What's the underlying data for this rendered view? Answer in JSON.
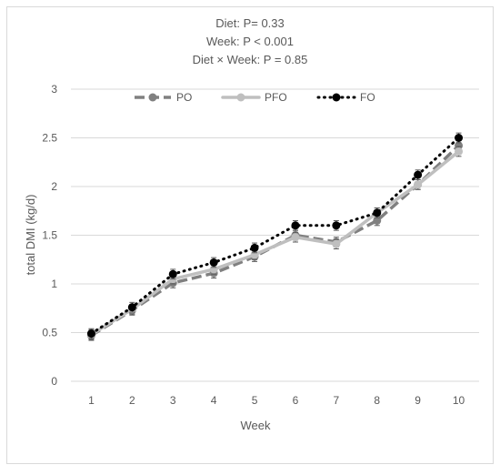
{
  "chart_data": {
    "type": "line",
    "annotations": [
      "Diet: P= 0.33",
      "Week: P < 0.001",
      "Diet × Week: P = 0.85"
    ],
    "xlabel": "Week",
    "ylabel": "total DMI (kg/d)",
    "x": [
      1,
      2,
      3,
      4,
      5,
      6,
      7,
      8,
      9,
      10
    ],
    "ylim": [
      0,
      3
    ],
    "yticks": [
      0,
      0.5,
      1,
      1.5,
      2,
      2.5,
      3
    ],
    "grid": true,
    "legend_position": "top",
    "series": [
      {
        "name": "PO",
        "values": [
          0.47,
          0.73,
          1.01,
          1.11,
          1.28,
          1.5,
          1.43,
          1.65,
          2.02,
          2.42
        ],
        "errors": [
          0.05,
          0.05,
          0.05,
          0.05,
          0.05,
          0.05,
          0.05,
          0.05,
          0.05,
          0.05
        ],
        "color": "#808080",
        "line_style": "dash"
      },
      {
        "name": "PFO",
        "values": [
          0.48,
          0.74,
          1.05,
          1.15,
          1.3,
          1.48,
          1.41,
          1.73,
          2.02,
          2.36
        ],
        "errors": [
          0.05,
          0.05,
          0.05,
          0.05,
          0.05,
          0.05,
          0.05,
          0.05,
          0.05,
          0.05
        ],
        "color": "#bfbfbf",
        "line_style": "solid"
      },
      {
        "name": "FO",
        "values": [
          0.49,
          0.76,
          1.1,
          1.22,
          1.37,
          1.6,
          1.6,
          1.73,
          2.12,
          2.5
        ],
        "errors": [
          0.05,
          0.05,
          0.05,
          0.05,
          0.05,
          0.05,
          0.05,
          0.05,
          0.05,
          0.05
        ],
        "color": "#000000",
        "line_style": "dot"
      }
    ]
  }
}
